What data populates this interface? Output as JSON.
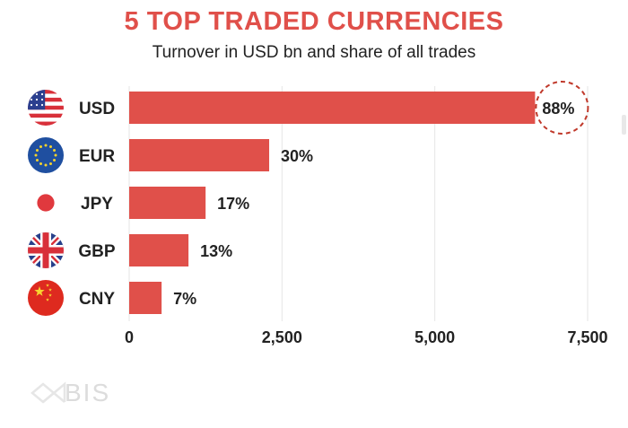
{
  "chart_data": {
    "type": "bar",
    "orientation": "horizontal",
    "title": "5 TOP TRADED CURRENCIES",
    "subtitle": "Turnover in USD bn and share of all trades",
    "categories": [
      "USD",
      "EUR",
      "JPY",
      "GBP",
      "CNY"
    ],
    "values": [
      6640,
      2290,
      1250,
      970,
      530
    ],
    "data_labels": [
      "88%",
      "30%",
      "17%",
      "13%",
      "7%"
    ],
    "flags": [
      "us-flag-icon",
      "eu-flag-icon",
      "japan-flag-icon",
      "uk-flag-icon",
      "china-flag-icon"
    ],
    "xlim": [
      0,
      7500
    ],
    "xticks": [
      0,
      2500,
      5000,
      7500
    ],
    "xtick_labels": [
      "0",
      "2,500",
      "5,000",
      "7,500"
    ],
    "grid": true,
    "highlight": "USD",
    "bar_color": "#e0504a"
  },
  "footer": {
    "logo_text": "BIS"
  }
}
